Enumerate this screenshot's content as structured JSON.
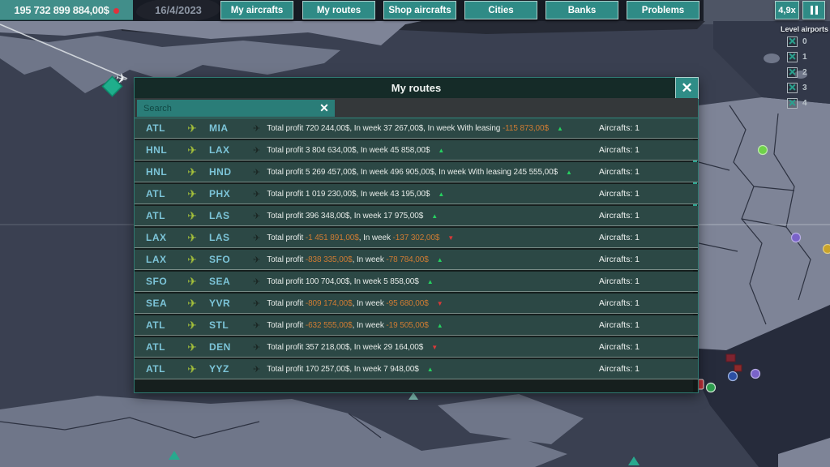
{
  "icons": {
    "plane": "✈",
    "close": "✕",
    "clear": "✕",
    "check": "✕",
    "trend_up": "▲",
    "trend_down": "▼"
  },
  "topbar": {
    "money": "195 732 899 884,00$",
    "date": "16/4/2023",
    "buttons": [
      "My aircrafts",
      "My routes",
      "Shop aircrafts",
      "Cities",
      "Banks",
      "Problems"
    ],
    "speed": "4,9x"
  },
  "level_airports": {
    "title": "Level airports",
    "levels": [
      "0",
      "1",
      "2",
      "3",
      "4"
    ]
  },
  "modal": {
    "title": "My routes",
    "search_placeholder": "Search",
    "rows": [
      {
        "from": "ATL",
        "to": "MIA",
        "segments": [
          {
            "text": "Total profit 720 244,00$, In week 37 267,00$, In week With leasing ",
            "neg": false
          },
          {
            "text": "-115 873,00$",
            "neg": true
          }
        ],
        "trend": "up",
        "aircrafts": "Aircrafts: 1"
      },
      {
        "from": "HNL",
        "to": "LAX",
        "segments": [
          {
            "text": "Total profit 3 804 634,00$, In week 45 858,00$",
            "neg": false
          }
        ],
        "trend": "up",
        "aircrafts": "Aircrafts: 1"
      },
      {
        "from": "HNL",
        "to": "HND",
        "segments": [
          {
            "text": "Total profit 5 269 457,00$, In week 496 905,00$, In week With leasing 245 555,00$",
            "neg": false
          }
        ],
        "trend": "up",
        "aircrafts": "Aircrafts: 1"
      },
      {
        "from": "ATL",
        "to": "PHX",
        "segments": [
          {
            "text": "Total profit 1 019 230,00$, In week 43 195,00$",
            "neg": false
          }
        ],
        "trend": "up",
        "aircrafts": "Aircrafts: 1"
      },
      {
        "from": "ATL",
        "to": "LAS",
        "segments": [
          {
            "text": "Total profit 396 348,00$, In week 17 975,00$",
            "neg": false
          }
        ],
        "trend": "up",
        "aircrafts": "Aircrafts: 1"
      },
      {
        "from": "LAX",
        "to": "LAS",
        "segments": [
          {
            "text": "Total profit ",
            "neg": false
          },
          {
            "text": "-1 451 891,00$",
            "neg": true
          },
          {
            "text": ", In week ",
            "neg": false
          },
          {
            "text": "-137 302,00$",
            "neg": true
          }
        ],
        "trend": "down",
        "aircrafts": "Aircrafts: 1"
      },
      {
        "from": "LAX",
        "to": "SFO",
        "segments": [
          {
            "text": "Total profit ",
            "neg": false
          },
          {
            "text": "-838 335,00$",
            "neg": true
          },
          {
            "text": ", In week ",
            "neg": false
          },
          {
            "text": "-78 784,00$",
            "neg": true
          }
        ],
        "trend": "up",
        "aircrafts": "Aircrafts: 1"
      },
      {
        "from": "SFO",
        "to": "SEA",
        "segments": [
          {
            "text": "Total profit 100 704,00$, In week 5 858,00$",
            "neg": false
          }
        ],
        "trend": "up",
        "aircrafts": "Aircrafts: 1"
      },
      {
        "from": "SEA",
        "to": "YVR",
        "segments": [
          {
            "text": "Total profit ",
            "neg": false
          },
          {
            "text": "-809 174,00$",
            "neg": true
          },
          {
            "text": ", In week ",
            "neg": false
          },
          {
            "text": "-95 680,00$",
            "neg": true
          }
        ],
        "trend": "down",
        "aircrafts": "Aircrafts: 1"
      },
      {
        "from": "ATL",
        "to": "STL",
        "segments": [
          {
            "text": "Total profit ",
            "neg": false
          },
          {
            "text": "-632 555,00$",
            "neg": true
          },
          {
            "text": ", In week ",
            "neg": false
          },
          {
            "text": "-19 505,00$",
            "neg": true
          }
        ],
        "trend": "up",
        "aircrafts": "Aircrafts: 1"
      },
      {
        "from": "ATL",
        "to": "DEN",
        "segments": [
          {
            "text": "Total profit 357 218,00$, In week 29 164,00$",
            "neg": false
          }
        ],
        "trend": "down",
        "aircrafts": "Aircrafts: 1"
      },
      {
        "from": "ATL",
        "to": "YYZ",
        "segments": [
          {
            "text": "Total profit 170 257,00$, In week 7 948,00$",
            "neg": false
          }
        ],
        "trend": "up",
        "aircrafts": "Aircrafts: 1"
      }
    ]
  },
  "colors": {
    "accent_teal": "#2f8b86",
    "negative_orange": "#cf7c33",
    "trend_up_green": "#26d060",
    "trend_down_red": "#dc3838",
    "airport_code_cyan": "#7cc4d8",
    "plane_icon_green": "#a5c13a",
    "money_alert_red": "#e0313c"
  }
}
